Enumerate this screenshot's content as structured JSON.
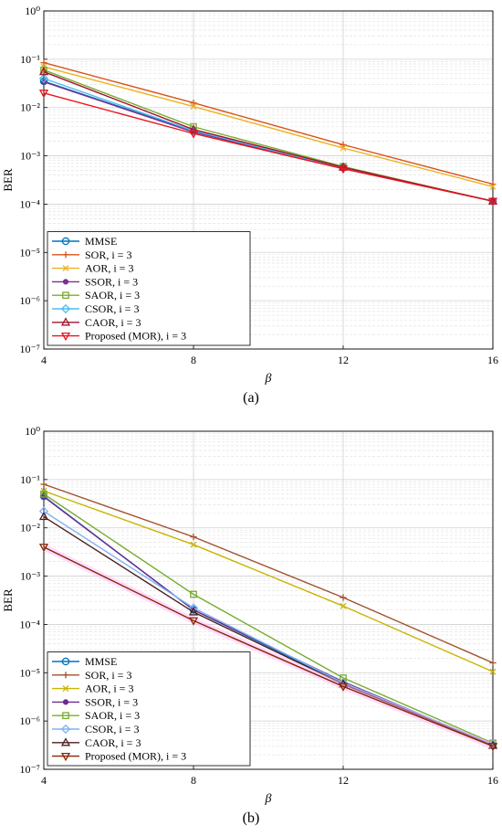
{
  "chart_data": [
    {
      "type": "line",
      "panel_label": "a",
      "xlabel": "β",
      "ylabel": "BER",
      "yscale": "log",
      "ylim": [
        1e-07,
        1
      ],
      "xlim": [
        4,
        16
      ],
      "x": [
        4,
        8,
        12,
        16
      ],
      "x_ticks": [
        "4",
        "8",
        "12",
        "16"
      ],
      "y_ticks": [
        "10⁰",
        "10⁻¹",
        "10⁻²",
        "10⁻³",
        "10⁻⁴",
        "10⁻⁵",
        "10⁻⁶",
        "10⁻⁷"
      ],
      "grid": true,
      "legend_position": "bottom-left",
      "series": [
        {
          "name": "MMSE",
          "color": "#0072BD",
          "marker": "circle",
          "values": [
            0.035,
            0.0032,
            0.00057,
            0.000115
          ]
        },
        {
          "name": "SOR, i = 3",
          "color": "#D95319",
          "marker": "plus",
          "values": [
            0.085,
            0.0125,
            0.0017,
            0.00026
          ]
        },
        {
          "name": "AOR, i = 3",
          "color": "#EDB120",
          "marker": "x",
          "values": [
            0.07,
            0.0105,
            0.00145,
            0.00023
          ]
        },
        {
          "name": "SSOR, i = 3",
          "color": "#7E2F8E",
          "marker": "dot",
          "values": [
            0.034,
            0.0031,
            0.00056,
            0.000115
          ]
        },
        {
          "name": "SAOR, i = 3",
          "color": "#77AC30",
          "marker": "square",
          "values": [
            0.06,
            0.004,
            0.0006,
            0.000115
          ]
        },
        {
          "name": "CSOR, i = 3",
          "color": "#4DBEEE",
          "marker": "diamond",
          "values": [
            0.04,
            0.0033,
            0.00056,
            0.000115
          ]
        },
        {
          "name": "CAOR, i = 3",
          "color": "#A2142F",
          "marker": "triangle-up",
          "values": [
            0.055,
            0.0035,
            0.00058,
            0.000115
          ]
        },
        {
          "name": "Proposed (MOR), i = 3",
          "color": "#E8141E",
          "marker": "triangle-down",
          "values": [
            0.02,
            0.0029,
            0.00054,
            0.000115
          ]
        }
      ]
    },
    {
      "type": "line",
      "panel_label": "b",
      "xlabel": "β",
      "ylabel": "BER",
      "yscale": "log",
      "ylim": [
        1e-07,
        1
      ],
      "xlim": [
        4,
        16
      ],
      "x": [
        4,
        8,
        12,
        16
      ],
      "x_ticks": [
        "4",
        "8",
        "12",
        "16"
      ],
      "y_ticks": [
        "10⁰",
        "10⁻¹",
        "10⁻²",
        "10⁻³",
        "10⁻⁴",
        "10⁻⁵",
        "10⁻⁶",
        "10⁻⁷"
      ],
      "grid": true,
      "legend_position": "bottom-left",
      "series": [
        {
          "name": "MMSE",
          "color": "#0072BD",
          "marker": "circle",
          "values": [
            0.045,
            0.0002,
            6e-06,
            3.2e-07
          ]
        },
        {
          "name": "SOR, i = 3",
          "color": "#A0522D",
          "marker": "plus",
          "values": [
            0.08,
            0.0065,
            0.00036,
            1.6e-05
          ]
        },
        {
          "name": "AOR, i = 3",
          "color": "#C8B400",
          "marker": "x",
          "values": [
            0.058,
            0.0045,
            0.00024,
            1.05e-05
          ]
        },
        {
          "name": "SSOR, i = 3",
          "color": "#6A2C91",
          "marker": "dot",
          "values": [
            0.044,
            0.0002,
            6.5e-06,
            3.2e-07
          ]
        },
        {
          "name": "SAOR, i = 3",
          "color": "#77AC30",
          "marker": "square",
          "values": [
            0.05,
            0.00042,
            7.8e-06,
            3.5e-07
          ]
        },
        {
          "name": "CSOR, i = 3",
          "color": "#7FB2F0",
          "marker": "diamond",
          "values": [
            0.022,
            0.00022,
            6.2e-06,
            3.3e-07
          ]
        },
        {
          "name": "CAOR, i = 3",
          "color": "#4B1E1E",
          "marker": "triangle-up",
          "values": [
            0.017,
            0.00018,
            5.8e-06,
            3.1e-07
          ]
        },
        {
          "name": "Proposed (MOR), i = 3",
          "color": "#8B2500",
          "marker": "triangle-down",
          "values": [
            0.004,
            0.00012,
            5.2e-06,
            3e-07
          ]
        }
      ]
    }
  ],
  "captions": [
    "(a)",
    "(b)"
  ]
}
